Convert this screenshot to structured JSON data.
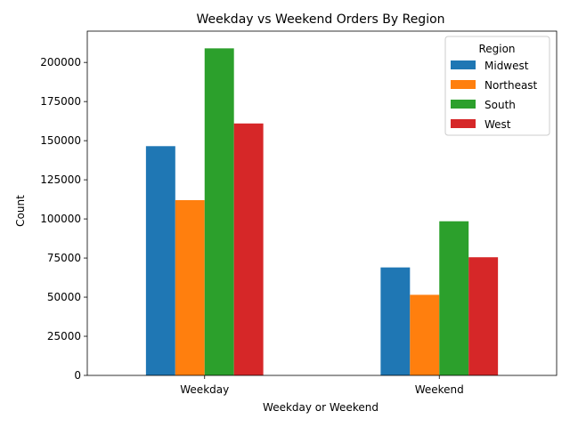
{
  "chart_data": {
    "type": "bar",
    "title": "Weekday vs Weekend Orders By Region",
    "xlabel": "Weekday or Weekend",
    "ylabel": "Count",
    "categories": [
      "Weekday",
      "Weekend"
    ],
    "series": [
      {
        "name": "Midwest",
        "color": "#1f77b4",
        "values": [
          146500,
          69000
        ]
      },
      {
        "name": "Northeast",
        "color": "#ff7f0e",
        "values": [
          112000,
          51500
        ]
      },
      {
        "name": "South",
        "color": "#2ca02c",
        "values": [
          209000,
          98500
        ]
      },
      {
        "name": "West",
        "color": "#d62728",
        "values": [
          161000,
          75500
        ]
      }
    ],
    "ylim": [
      0,
      220000
    ],
    "yticks": [
      0,
      25000,
      50000,
      75000,
      100000,
      125000,
      150000,
      175000,
      200000
    ],
    "legend": {
      "title": "Region",
      "placement": "top-right"
    },
    "grid": false
  }
}
